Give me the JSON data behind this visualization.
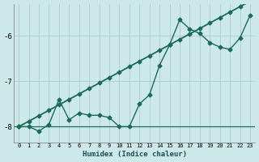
{
  "bg_color": "#cce8e8",
  "grid_color": "#aacccc",
  "line_color": "#1a6b5a",
  "xlabel": "Humidex (Indice chaleur)",
  "x_data": [
    0,
    1,
    2,
    3,
    4,
    5,
    6,
    7,
    8,
    9,
    10,
    11,
    12,
    13,
    14,
    15,
    16,
    17,
    18,
    19,
    20,
    21,
    22,
    23
  ],
  "y_main": [
    -8.0,
    -8.0,
    -8.1,
    -7.95,
    -7.4,
    -7.85,
    -7.7,
    -7.75,
    -7.75,
    -7.8,
    -8.0,
    -8.0,
    -7.5,
    -7.3,
    -6.65,
    -6.2,
    -5.65,
    -5.85,
    -5.95,
    -6.15,
    -6.25,
    -6.3,
    -6.05,
    -5.55
  ],
  "y_trend": [
    -8.0,
    -7.88,
    -7.76,
    -7.64,
    -7.52,
    -7.4,
    -7.28,
    -7.16,
    -7.04,
    -6.92,
    -6.8,
    -6.68,
    -6.56,
    -6.44,
    -6.32,
    -6.2,
    -6.08,
    -5.96,
    -5.84,
    -5.72,
    -5.6,
    -5.48,
    -5.36,
    -5.24
  ],
  "y_flat": -8.0,
  "xlim": [
    -0.5,
    23.5
  ],
  "ylim": [
    -8.35,
    -5.3
  ],
  "yticks": [
    -8,
    -7,
    -6
  ],
  "xticks": [
    0,
    1,
    2,
    3,
    4,
    5,
    6,
    7,
    8,
    9,
    10,
    11,
    12,
    13,
    14,
    15,
    16,
    17,
    18,
    19,
    20,
    21,
    22,
    23
  ],
  "markersize": 2.5,
  "linewidth": 1.0
}
